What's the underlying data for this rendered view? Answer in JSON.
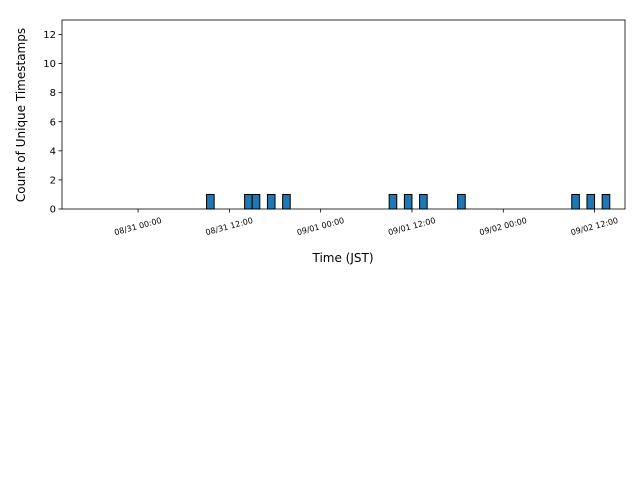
{
  "chart_data": {
    "type": "histogram",
    "ylabel": "Count of Unique Timestamps",
    "xlabel": "Time (JST)",
    "bins": [
      -7,
      -6,
      -5,
      -4,
      -3,
      -2,
      -1,
      0,
      1,
      2,
      3,
      4,
      5,
      6,
      7,
      8,
      9,
      10,
      11,
      12,
      13,
      14,
      15,
      16,
      17,
      18,
      19,
      20,
      21,
      22,
      23,
      24,
      25,
      26,
      27,
      28,
      29,
      30,
      31,
      32,
      33,
      34,
      35,
      36,
      37,
      38,
      39,
      40,
      41,
      42,
      43,
      44,
      45,
      46,
      47,
      48,
      49,
      50,
      51,
      52,
      53,
      54,
      55,
      56,
      57,
      58,
      59,
      60,
      61,
      62
    ],
    "values": [
      0,
      0,
      0,
      0,
      0,
      0,
      0,
      0,
      0,
      0,
      0,
      0,
      0,
      0,
      0,
      0,
      1,
      0,
      0,
      0,
      0,
      1,
      1,
      0,
      1,
      0,
      1,
      0,
      0,
      0,
      0,
      0,
      0,
      0,
      0,
      0,
      0,
      0,
      0,
      0,
      1,
      0,
      1,
      0,
      1,
      0,
      0,
      0,
      0,
      1,
      0,
      0,
      0,
      0,
      0,
      0,
      0,
      0,
      0,
      0,
      0,
      0,
      0,
      0,
      1,
      0,
      1,
      0,
      1
    ],
    "color": "#1f77b4",
    "xlim": [
      -10,
      64
    ],
    "xticks": [
      {
        "value": 0,
        "label": "08/31 00:00"
      },
      {
        "value": 12,
        "label": "08/31 12:00"
      },
      {
        "value": 24,
        "label": "09/01 00:00"
      },
      {
        "value": 36,
        "label": "09/01 12:00"
      },
      {
        "value": 48,
        "label": "09/02 00:00"
      },
      {
        "value": 60,
        "label": "09/02 12:00"
      }
    ],
    "ylim": [
      0,
      13
    ],
    "yticks": [
      0,
      2,
      4,
      6,
      8,
      10,
      12
    ],
    "grid": false
  }
}
